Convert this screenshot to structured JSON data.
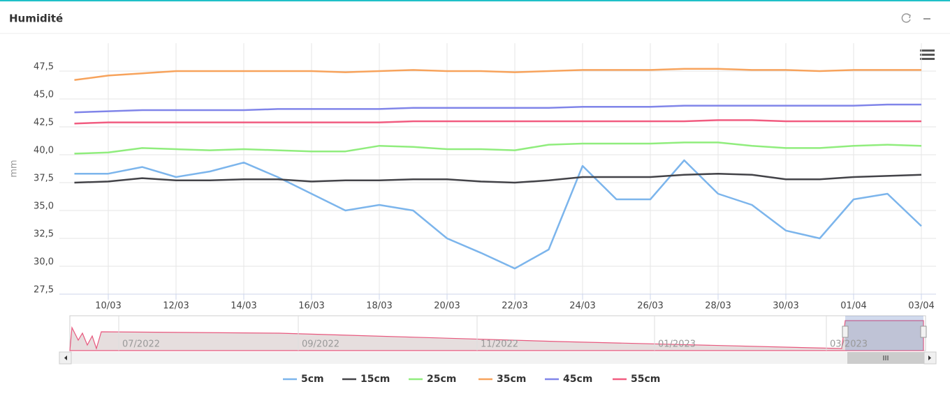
{
  "header": {
    "title": "Humidité"
  },
  "chart_data": {
    "type": "line",
    "ylabel": "mm",
    "x": [
      "09/03",
      "10/03",
      "11/03",
      "12/03",
      "13/03",
      "14/03",
      "15/03",
      "16/03",
      "17/03",
      "18/03",
      "19/03",
      "20/03",
      "21/03",
      "22/03",
      "23/03",
      "24/03",
      "25/03",
      "26/03",
      "27/03",
      "28/03",
      "29/03",
      "30/03",
      "31/03",
      "01/04",
      "02/04",
      "03/04"
    ],
    "xticks": [
      "10/03",
      "12/03",
      "14/03",
      "16/03",
      "18/03",
      "20/03",
      "22/03",
      "24/03",
      "26/03",
      "28/03",
      "30/03",
      "01/04",
      "03/04"
    ],
    "ylim": [
      27.5,
      50
    ],
    "yticks": [
      {
        "value": 27.5,
        "label": "27,5"
      },
      {
        "value": 30,
        "label": "30,0"
      },
      {
        "value": 32.5,
        "label": "32,5"
      },
      {
        "value": 35,
        "label": "35,0"
      },
      {
        "value": 37.5,
        "label": "37,5"
      },
      {
        "value": 40,
        "label": "40,0"
      },
      {
        "value": 42.5,
        "label": "42,5"
      },
      {
        "value": 45,
        "label": "45,0"
      },
      {
        "value": 47.5,
        "label": "47,5"
      }
    ],
    "grid": true,
    "legend": "bottom",
    "series": [
      {
        "name": "5cm",
        "color": "#7cb5ec",
        "values": [
          38.3,
          38.3,
          38.9,
          38.0,
          38.5,
          39.3,
          38.0,
          36.5,
          35.0,
          35.5,
          35.0,
          32.5,
          31.2,
          29.8,
          31.5,
          39.0,
          36.0,
          36.0,
          39.5,
          36.5,
          35.5,
          33.2,
          32.5,
          36.0,
          36.5,
          33.6
        ]
      },
      {
        "name": "15cm",
        "color": "#434348",
        "values": [
          37.5,
          37.6,
          37.9,
          37.7,
          37.7,
          37.8,
          37.8,
          37.6,
          37.7,
          37.7,
          37.8,
          37.8,
          37.6,
          37.5,
          37.7,
          38.0,
          38.0,
          38.0,
          38.2,
          38.3,
          38.2,
          37.8,
          37.8,
          38.0,
          38.1,
          38.2
        ]
      },
      {
        "name": "25cm",
        "color": "#90ed7d",
        "values": [
          40.1,
          40.2,
          40.6,
          40.5,
          40.4,
          40.5,
          40.4,
          40.3,
          40.3,
          40.8,
          40.7,
          40.5,
          40.5,
          40.4,
          40.9,
          41.0,
          41.0,
          41.0,
          41.1,
          41.1,
          40.8,
          40.6,
          40.6,
          40.8,
          40.9,
          40.8
        ]
      },
      {
        "name": "35cm",
        "color": "#f7a35c",
        "values": [
          46.7,
          47.1,
          47.3,
          47.5,
          47.5,
          47.5,
          47.5,
          47.5,
          47.4,
          47.5,
          47.6,
          47.5,
          47.5,
          47.4,
          47.5,
          47.6,
          47.6,
          47.6,
          47.7,
          47.7,
          47.6,
          47.6,
          47.5,
          47.6,
          47.6,
          47.6
        ]
      },
      {
        "name": "45cm",
        "color": "#8085e9",
        "values": [
          43.8,
          43.9,
          44.0,
          44.0,
          44.0,
          44.0,
          44.1,
          44.1,
          44.1,
          44.1,
          44.2,
          44.2,
          44.2,
          44.2,
          44.2,
          44.3,
          44.3,
          44.3,
          44.4,
          44.4,
          44.4,
          44.4,
          44.4,
          44.4,
          44.5,
          44.5
        ]
      },
      {
        "name": "55cm",
        "color": "#f15c80",
        "values": [
          42.8,
          42.9,
          42.9,
          42.9,
          42.9,
          42.9,
          42.9,
          42.9,
          42.9,
          42.9,
          43.0,
          43.0,
          43.0,
          43.0,
          43.0,
          43.0,
          43.0,
          43.0,
          43.0,
          43.1,
          43.1,
          43.0,
          43.0,
          43.0,
          43.0,
          43.0
        ]
      }
    ],
    "navigator": {
      "labels": [
        "07/2022",
        "09/2022",
        "11/2022",
        "01/2023",
        "03/2023"
      ]
    }
  }
}
